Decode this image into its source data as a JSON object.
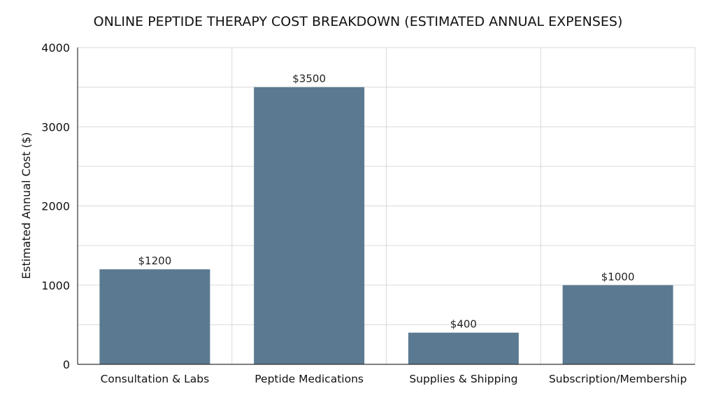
{
  "chart_data": {
    "type": "bar",
    "title": "ONLINE PEPTIDE THERAPY COST BREAKDOWN (ESTIMATED ANNUAL EXPENSES)",
    "xlabel": "",
    "ylabel": "Estimated Annual Cost ($)",
    "categories": [
      "Consultation & Labs",
      "Peptide Medications",
      "Supplies & Shipping",
      "Subscription/Membership"
    ],
    "values": [
      1200,
      3500,
      400,
      1000
    ],
    "data_labels": [
      "$1200",
      "$3500",
      "$400",
      "$1000"
    ],
    "ylim": [
      0,
      4000
    ],
    "yticks": [
      0,
      1000,
      2000,
      3000,
      4000
    ],
    "ytick_labels": [
      "0",
      "1000",
      "2000",
      "3000",
      "4000"
    ],
    "grid": true,
    "bar_color": "#5b7a91",
    "grid_color": "#d9d9d9"
  }
}
